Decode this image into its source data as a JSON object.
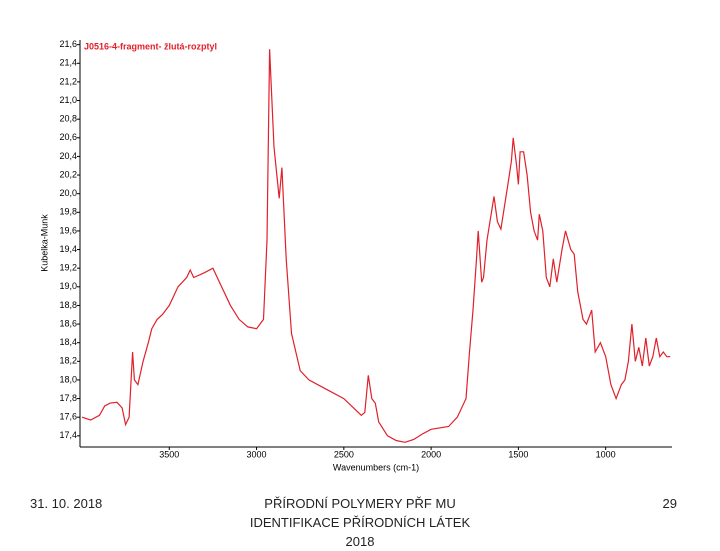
{
  "chart_data": {
    "type": "line",
    "title": "J0516-4-fragment- žlutá-rozptyl",
    "x_label": "Wavenumbers (cm-1)",
    "y_label": "Kubelka-Munk",
    "x": [
      4000,
      3950,
      3900,
      3870,
      3840,
      3800,
      3770,
      3750,
      3730,
      3710,
      3700,
      3680,
      3650,
      3620,
      3600,
      3570,
      3540,
      3500,
      3450,
      3400,
      3380,
      3360,
      3300,
      3250,
      3200,
      3150,
      3100,
      3050,
      3000,
      2960,
      2940,
      2925,
      2900,
      2870,
      2855,
      2830,
      2800,
      2750,
      2700,
      2600,
      2500,
      2400,
      2380,
      2360,
      2340,
      2320,
      2300,
      2250,
      2200,
      2150,
      2100,
      2050,
      2000,
      1900,
      1850,
      1800,
      1780,
      1760,
      1740,
      1730,
      1710,
      1700,
      1680,
      1650,
      1640,
      1620,
      1600,
      1560,
      1540,
      1530,
      1510,
      1500,
      1490,
      1470,
      1450,
      1430,
      1410,
      1390,
      1380,
      1360,
      1340,
      1320,
      1300,
      1280,
      1250,
      1230,
      1200,
      1180,
      1160,
      1130,
      1110,
      1080,
      1060,
      1030,
      1000,
      970,
      940,
      910,
      890,
      870,
      850,
      830,
      810,
      790,
      770,
      750,
      730,
      710,
      690,
      670,
      650,
      630
    ],
    "series": [
      {
        "name": "J0516-4-fragment- žlutá-rozptyl",
        "color": "#e0202a",
        "values": [
          17.6,
          17.57,
          17.62,
          17.72,
          17.75,
          17.76,
          17.7,
          17.52,
          17.6,
          18.3,
          18.0,
          17.95,
          18.2,
          18.4,
          18.55,
          18.65,
          18.7,
          18.8,
          19.0,
          19.1,
          19.18,
          19.1,
          19.15,
          19.2,
          19.0,
          18.8,
          18.65,
          18.57,
          18.55,
          18.65,
          19.5,
          21.55,
          20.5,
          19.95,
          20.28,
          19.3,
          18.5,
          18.1,
          18.0,
          17.9,
          17.8,
          17.62,
          17.65,
          18.05,
          17.8,
          17.75,
          17.55,
          17.4,
          17.35,
          17.33,
          17.36,
          17.42,
          17.47,
          17.5,
          17.6,
          17.8,
          18.3,
          18.75,
          19.3,
          19.6,
          19.05,
          19.1,
          19.5,
          19.85,
          19.97,
          19.7,
          19.62,
          20.1,
          20.35,
          20.6,
          20.3,
          20.1,
          20.45,
          20.45,
          20.2,
          19.8,
          19.6,
          19.5,
          19.78,
          19.6,
          19.1,
          19.0,
          19.3,
          19.05,
          19.4,
          19.6,
          19.4,
          19.35,
          18.95,
          18.65,
          18.6,
          18.75,
          18.3,
          18.4,
          18.25,
          17.95,
          17.8,
          17.95,
          18.0,
          18.2,
          18.6,
          18.2,
          18.35,
          18.15,
          18.45,
          18.15,
          18.25,
          18.45,
          18.25,
          18.3,
          18.25,
          18.25
        ]
      }
    ],
    "xlim": [
      4000,
      620
    ],
    "ylim": [
      17.28,
      21.65
    ],
    "xticks": [
      3500,
      3000,
      2500,
      2000,
      1500,
      1000
    ],
    "yticks": [
      {
        "value": 17.4,
        "label": "17,4"
      },
      {
        "value": 17.6,
        "label": "17,6"
      },
      {
        "value": 17.8,
        "label": "17,8"
      },
      {
        "value": 18.0,
        "label": "18,0"
      },
      {
        "value": 18.2,
        "label": "18,2"
      },
      {
        "value": 18.4,
        "label": "18,4"
      },
      {
        "value": 18.6,
        "label": "18,6"
      },
      {
        "value": 18.8,
        "label": "18,8"
      },
      {
        "value": 19.0,
        "label": "19,0"
      },
      {
        "value": 19.2,
        "label": "19,2"
      },
      {
        "value": 19.4,
        "label": "19,4"
      },
      {
        "value": 19.6,
        "label": "19,6"
      },
      {
        "value": 19.8,
        "label": "19,8"
      },
      {
        "value": 20.0,
        "label": "20,0"
      },
      {
        "value": 20.2,
        "label": "20,2"
      },
      {
        "value": 20.4,
        "label": "20,4"
      },
      {
        "value": 20.6,
        "label": "20,6"
      },
      {
        "value": 20.8,
        "label": "20,8"
      },
      {
        "value": 21.0,
        "label": "21,0"
      },
      {
        "value": 21.2,
        "label": "21,2"
      },
      {
        "value": 21.4,
        "label": "21,4"
      },
      {
        "value": 21.6,
        "label": "21,6"
      }
    ],
    "grid": false
  },
  "footer": {
    "date": "31. 10. 2018",
    "center": "PŘÍRODNÍ POLYMERY PŘF MU IDENTIFIKACE PŘÍRODNÍCH LÁTEK 2018",
    "page": "29"
  }
}
